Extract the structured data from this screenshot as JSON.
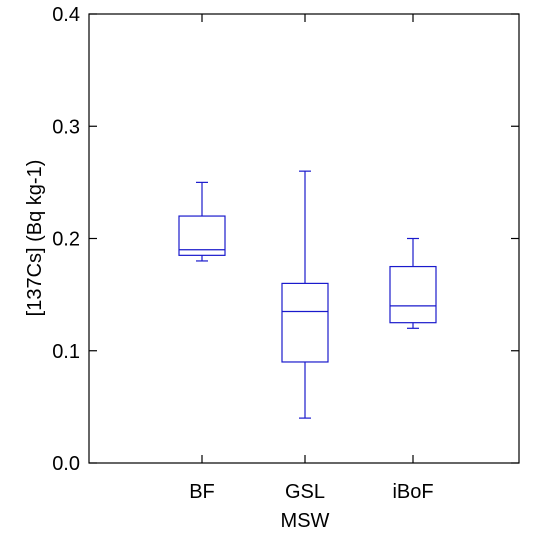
{
  "chart_data": {
    "type": "box",
    "title": "",
    "xlabel": "MSW",
    "ylabel": "[137Cs]  (Bq kg-1)",
    "ylim": [
      0.0,
      0.4
    ],
    "yticks": [
      "0.0",
      "0.1",
      "0.2",
      "0.3",
      "0.4"
    ],
    "categories": [
      "BF",
      "GSL",
      "iBoF"
    ],
    "box_color": "#1a1acc",
    "boxes": [
      {
        "category": "BF",
        "min": 0.18,
        "q1": 0.185,
        "median": 0.19,
        "q3": 0.22,
        "max": 0.25
      },
      {
        "category": "GSL",
        "min": 0.04,
        "q1": 0.09,
        "median": 0.135,
        "q3": 0.16,
        "max": 0.26
      },
      {
        "category": "iBoF",
        "min": 0.12,
        "q1": 0.125,
        "median": 0.14,
        "q3": 0.175,
        "max": 0.2
      }
    ]
  }
}
